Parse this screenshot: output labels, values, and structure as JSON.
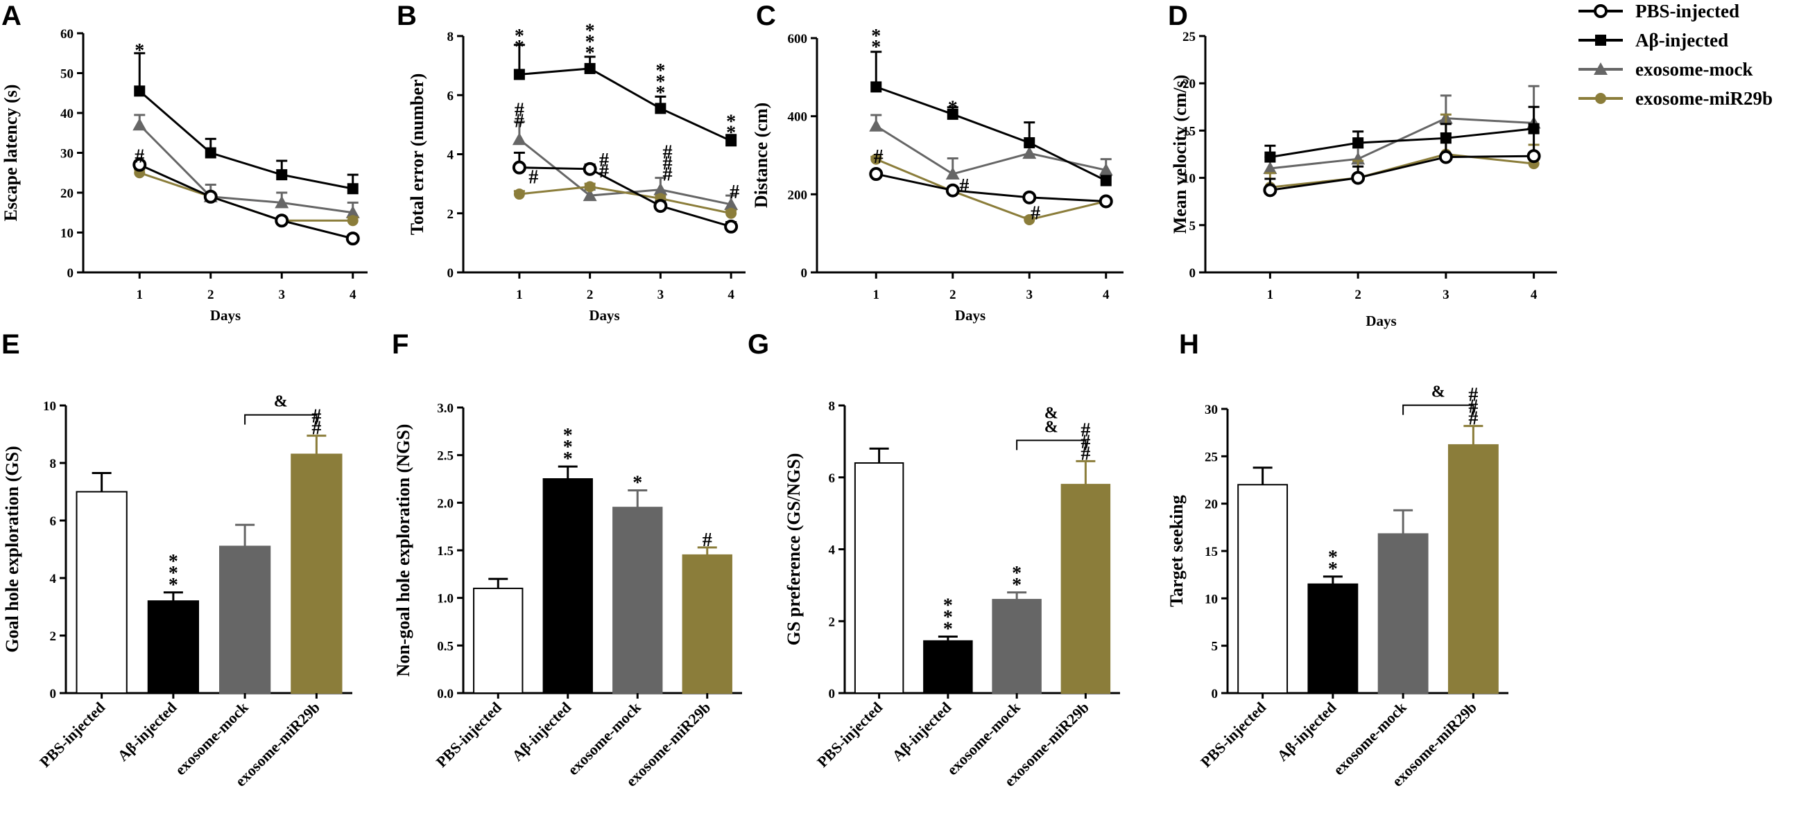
{
  "chart_data": [
    {
      "panel": "A",
      "type": "line",
      "xlabel": "Days",
      "ylabel": "Escape latency (s)",
      "x": [
        1,
        2,
        3,
        4
      ],
      "ylim": [
        0,
        60
      ],
      "yticks": [
        0,
        10,
        20,
        30,
        40,
        50,
        60
      ],
      "series": [
        {
          "name": "PBS-injected",
          "values": [
            27,
            19,
            13,
            8.5
          ],
          "err": [
            0.8,
            0.8,
            0.8,
            0.8
          ]
        },
        {
          "name": "Aβ-injected",
          "values": [
            45.5,
            30,
            24.5,
            21
          ],
          "err": [
            9.5,
            3.5,
            3.5,
            3.5
          ]
        },
        {
          "name": "exosome-mock",
          "values": [
            37,
            19,
            17.5,
            15
          ],
          "err": [
            2.5,
            3,
            2.5,
            2.5
          ]
        },
        {
          "name": "exosome-miR29b",
          "values": [
            25,
            19,
            13,
            13
          ],
          "err": [
            0.8,
            0.8,
            0.8,
            0.8
          ]
        }
      ],
      "annotations": [
        {
          "text": "*",
          "x": 1,
          "y": 55.5
        },
        {
          "text": "#",
          "x": 1,
          "y": 29
        }
      ]
    },
    {
      "panel": "B",
      "type": "line",
      "xlabel": "Days",
      "ylabel": "Total error (number)",
      "x": [
        1,
        2,
        3,
        4
      ],
      "ylim": [
        0,
        8
      ],
      "yticks": [
        0,
        2,
        4,
        6,
        8
      ],
      "series": [
        {
          "name": "PBS-injected",
          "values": [
            3.55,
            3.5,
            2.25,
            1.55
          ],
          "err": [
            0.5,
            0.15,
            0.15,
            0.15
          ]
        },
        {
          "name": "Aβ-injected",
          "values": [
            6.7,
            6.9,
            5.55,
            4.45
          ],
          "err": [
            1,
            0.4,
            0.4,
            0.2
          ]
        },
        {
          "name": "exosome-mock",
          "values": [
            4.5,
            2.6,
            2.8,
            2.3
          ],
          "err": [
            0.6,
            0.2,
            0.4,
            0.3
          ]
        },
        {
          "name": "exosome-miR29b",
          "values": [
            2.65,
            2.9,
            2.5,
            2.0
          ],
          "err": [
            0.1,
            0.1,
            0.1,
            0.1
          ]
        }
      ],
      "annotations": [
        {
          "text": "**",
          "x": 1,
          "y": 7.6
        },
        {
          "text": "***",
          "x": 2,
          "y": 7.4
        },
        {
          "text": "***",
          "x": 3,
          "y": 6.05
        },
        {
          "text": "**",
          "x": 4,
          "y": 4.7
        },
        {
          "text": "##",
          "x": 1,
          "y": 5.1
        },
        {
          "text": "#",
          "x": 1.2,
          "y": 3.2
        },
        {
          "text": "##",
          "x": 2.2,
          "y": 3.4
        },
        {
          "text": "###",
          "x": 3.1,
          "y": 3.3
        },
        {
          "text": "#",
          "x": 4.05,
          "y": 2.7
        }
      ]
    },
    {
      "panel": "C",
      "type": "line",
      "xlabel": "Days",
      "ylabel": "Distance (cm)",
      "x": [
        1,
        2,
        3,
        4
      ],
      "ylim": [
        0,
        600
      ],
      "yticks": [
        0,
        200,
        400,
        600
      ],
      "series": [
        {
          "name": "PBS-injected",
          "values": [
            252,
            210,
            192,
            182
          ],
          "err": [
            6,
            6,
            6,
            6
          ]
        },
        {
          "name": "Aβ-injected",
          "values": [
            475,
            405,
            332,
            235
          ],
          "err": [
            90,
            18,
            52,
            12
          ]
        },
        {
          "name": "exosome-mock",
          "values": [
            375,
            252,
            305,
            262
          ],
          "err": [
            28,
            40,
            20,
            28
          ]
        },
        {
          "name": "exosome-miR29b",
          "values": [
            290,
            208,
            135,
            182
          ],
          "err": [
            6,
            6,
            6,
            6
          ]
        }
      ],
      "annotations": [
        {
          "text": "**",
          "x": 1,
          "y": 575
        },
        {
          "text": "*",
          "x": 2,
          "y": 420
        },
        {
          "text": "#",
          "x": 1.03,
          "y": 295
        },
        {
          "text": "#",
          "x": 2.15,
          "y": 220
        },
        {
          "text": "#",
          "x": 3.08,
          "y": 150
        }
      ]
    },
    {
      "panel": "D",
      "type": "line",
      "xlabel": "Days",
      "ylabel": "Mean velocity (cm/s)",
      "x": [
        1,
        2,
        3,
        4
      ],
      "ylim": [
        0,
        25
      ],
      "yticks": [
        0,
        5,
        10,
        15,
        20,
        25
      ],
      "series": [
        {
          "name": "PBS-injected",
          "values": [
            8.7,
            10,
            12.2,
            12.3
          ],
          "err": [
            1.2,
            1.2,
            2.5,
            2.5
          ]
        },
        {
          "name": "Aβ-injected",
          "values": [
            12.2,
            13.7,
            14.2,
            15.2
          ],
          "err": [
            1.2,
            1.2,
            1.5,
            2.3
          ]
        },
        {
          "name": "exosome-mock",
          "values": [
            11,
            12,
            16.3,
            15.8
          ],
          "err": [
            1.2,
            1.2,
            2.4,
            3.9
          ]
        },
        {
          "name": "exosome-miR29b",
          "values": [
            9,
            10,
            12.5,
            11.5
          ],
          "err": [
            1.5,
            1.8,
            4.2,
            2.0
          ]
        }
      ],
      "annotations": []
    },
    {
      "panel": "E",
      "type": "bar",
      "ylabel": "Goal hole exploration (GS)",
      "categories": [
        "PBS-injected",
        "Aβ-injected",
        "exosome-mock",
        "exosome-miR29b"
      ],
      "values": [
        7.0,
        3.2,
        5.1,
        8.3
      ],
      "err": [
        0.65,
        0.3,
        0.75,
        0.65
      ],
      "ylim": [
        0,
        10
      ],
      "yticks": [
        0,
        2,
        4,
        6,
        8,
        10
      ],
      "annotations": [
        {
          "text": "***",
          "bar": 1
        },
        {
          "text": "##",
          "bar": 3
        }
      ],
      "bracket": {
        "from": 2,
        "to": 3,
        "label": "&"
      }
    },
    {
      "panel": "F",
      "type": "bar",
      "ylabel": "Non-goal hole exploration (NGS)",
      "categories": [
        "PBS-injected",
        "Aβ-injected",
        "exosome-mock",
        "exosome-miR29b"
      ],
      "values": [
        1.1,
        2.25,
        1.95,
        1.45
      ],
      "err": [
        0.1,
        0.13,
        0.18,
        0.08
      ],
      "ylim": [
        0,
        3.0
      ],
      "yticks": [
        0.0,
        0.5,
        1.0,
        1.5,
        2.0,
        2.5,
        3.0
      ],
      "annotations": [
        {
          "text": "***",
          "bar": 1
        },
        {
          "text": "*",
          "bar": 2
        },
        {
          "text": "#",
          "bar": 3
        }
      ],
      "bracket": null
    },
    {
      "panel": "G",
      "type": "bar",
      "ylabel": "GS preference (GS/NGS)",
      "categories": [
        "PBS-injected",
        "Aβ-injected",
        "exosome-mock",
        "exosome-miR29b"
      ],
      "values": [
        6.4,
        1.45,
        2.6,
        5.8
      ],
      "err": [
        0.4,
        0.12,
        0.2,
        0.65
      ],
      "ylim": [
        0,
        8
      ],
      "yticks": [
        0,
        2,
        4,
        6,
        8
      ],
      "annotations": [
        {
          "text": "***",
          "bar": 1
        },
        {
          "text": "**",
          "bar": 2
        },
        {
          "text": "###",
          "bar": 3
        }
      ],
      "bracket": {
        "from": 2,
        "to": 3,
        "label": "&&"
      }
    },
    {
      "panel": "H",
      "type": "bar",
      "ylabel": "Target seeking",
      "categories": [
        "PBS-injected",
        "Aβ-injected",
        "exosome-mock",
        "exosome-miR29b"
      ],
      "values": [
        22,
        11.5,
        16.8,
        26.2
      ],
      "err": [
        1.8,
        0.8,
        2.5,
        2.0
      ],
      "ylim": [
        0,
        30
      ],
      "yticks": [
        0,
        5,
        10,
        15,
        20,
        25,
        30
      ],
      "annotations": [
        {
          "text": "**",
          "bar": 1
        },
        {
          "text": "###",
          "bar": 3
        }
      ],
      "bracket": {
        "from": 2,
        "to": 3,
        "label": "&"
      }
    }
  ],
  "legend": {
    "placement": "top-right",
    "entries": [
      {
        "name": "PBS-injected",
        "color": "#000000",
        "marker": "circle-open"
      },
      {
        "name": "Aβ-injected",
        "color": "#000000",
        "marker": "square"
      },
      {
        "name": "exosome-mock",
        "color": "#666666",
        "marker": "triangle"
      },
      {
        "name": "exosome-miR29b",
        "color": "#8B7D3A",
        "marker": "circle"
      }
    ]
  },
  "colors": {
    "PBS-injected": "#000000",
    "Aβ-injected": "#000000",
    "exosome-mock": "#666666",
    "exosome-miR29b": "#8B7D3A"
  },
  "bar_fills": [
    "#ffffff",
    "#000000",
    "#666666",
    "#8B7D3A"
  ]
}
